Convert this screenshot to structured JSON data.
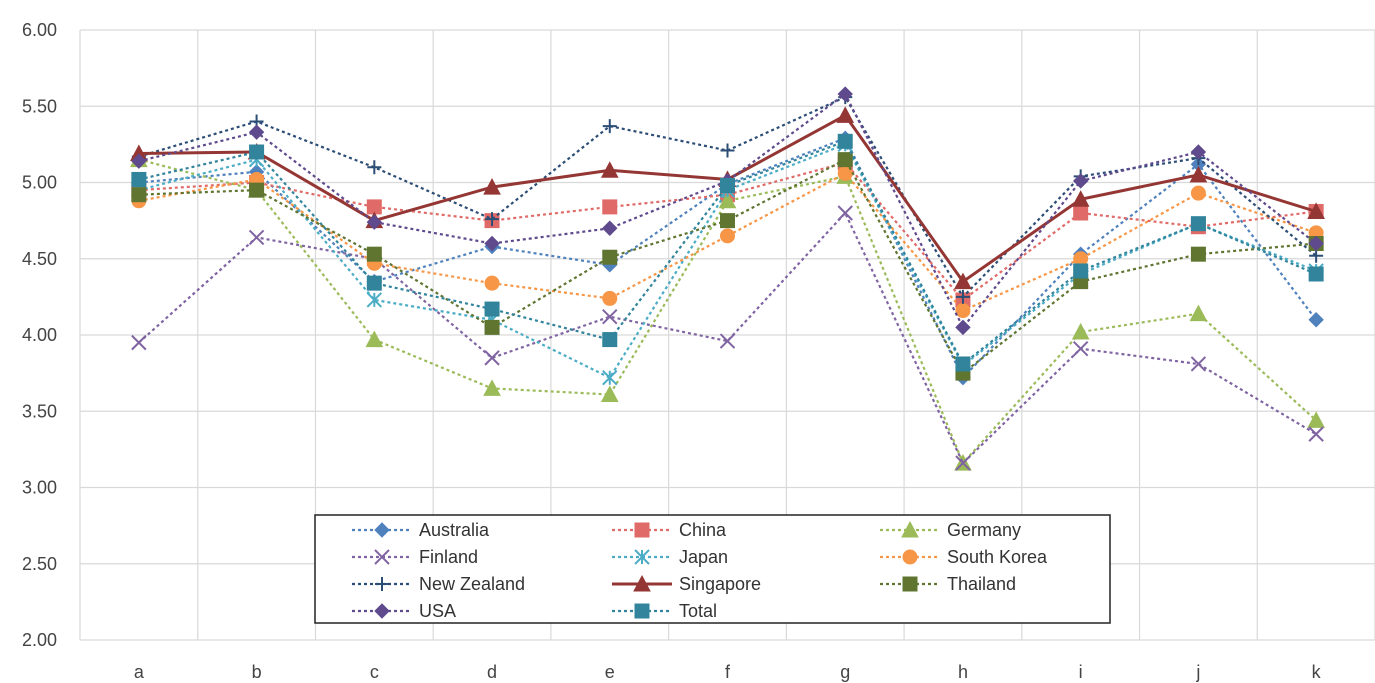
{
  "chart_data": {
    "type": "line",
    "categories": [
      "a",
      "b",
      "c",
      "d",
      "e",
      "f",
      "g",
      "h",
      "i",
      "j",
      "k"
    ],
    "ylim": [
      2.0,
      6.0
    ],
    "yticks": [
      "2.00",
      "2.50",
      "3.00",
      "3.50",
      "4.00",
      "4.50",
      "5.00",
      "5.50",
      "6.00"
    ],
    "grid": true,
    "legend_position": "bottom-center",
    "series": [
      {
        "name": "Australia",
        "color": "#4F81BD",
        "marker": "diamond",
        "style": "dotted",
        "values": [
          5.0,
          5.07,
          4.35,
          4.58,
          4.46,
          4.99,
          5.29,
          3.72,
          4.53,
          5.12,
          4.1
        ]
      },
      {
        "name": "China",
        "color": "#E06A67",
        "marker": "square",
        "style": "dotted",
        "values": [
          4.95,
          5.0,
          4.84,
          4.75,
          4.84,
          4.92,
          5.13,
          4.23,
          4.8,
          4.71,
          4.81
        ]
      },
      {
        "name": "Germany",
        "color": "#9BBB59",
        "marker": "triangle",
        "style": "dotted",
        "values": [
          5.15,
          4.95,
          3.97,
          3.65,
          3.61,
          4.88,
          5.04,
          3.16,
          4.02,
          4.14,
          3.44
        ]
      },
      {
        "name": "Finland",
        "color": "#8064A2",
        "marker": "x",
        "style": "dotted",
        "values": [
          3.95,
          4.64,
          4.5,
          3.85,
          4.12,
          3.96,
          4.8,
          3.16,
          3.91,
          3.81,
          3.35
        ]
      },
      {
        "name": "Japan",
        "color": "#4BACC6",
        "marker": "asterisk",
        "style": "dotted",
        "values": [
          4.95,
          5.15,
          4.23,
          4.1,
          3.72,
          4.95,
          5.25,
          3.8,
          4.4,
          4.73,
          4.42
        ]
      },
      {
        "name": "South Korea",
        "color": "#F79646",
        "marker": "circle",
        "style": "dotted",
        "values": [
          4.88,
          5.02,
          4.47,
          4.34,
          4.24,
          4.65,
          5.06,
          4.16,
          4.5,
          4.93,
          4.67
        ]
      },
      {
        "name": "New Zealand",
        "color": "#2C4D75",
        "marker": "plus",
        "style": "dotted",
        "values": [
          5.17,
          5.4,
          5.1,
          4.76,
          5.37,
          5.21,
          5.56,
          4.25,
          5.04,
          5.16,
          4.52
        ]
      },
      {
        "name": "Singapore",
        "color": "#943634",
        "marker": "triangle",
        "style": "solid",
        "values": [
          5.19,
          5.2,
          4.75,
          4.97,
          5.08,
          5.02,
          5.44,
          4.35,
          4.89,
          5.05,
          4.81
        ]
      },
      {
        "name": "Thailand",
        "color": "#5F7530",
        "marker": "square",
        "style": "dotted",
        "values": [
          4.92,
          4.95,
          4.53,
          4.05,
          4.51,
          4.75,
          5.15,
          3.75,
          4.35,
          4.53,
          4.6
        ]
      },
      {
        "name": "USA",
        "color": "#5E4A8C",
        "marker": "diamond",
        "style": "dotted",
        "values": [
          5.14,
          5.33,
          4.74,
          4.6,
          4.7,
          5.01,
          5.58,
          4.05,
          5.01,
          5.2,
          4.6
        ]
      },
      {
        "name": "Total",
        "color": "#31849B",
        "marker": "square",
        "style": "dotted",
        "values": [
          5.02,
          5.2,
          4.34,
          4.17,
          3.97,
          4.98,
          5.27,
          3.81,
          4.42,
          4.73,
          4.4
        ]
      }
    ]
  }
}
